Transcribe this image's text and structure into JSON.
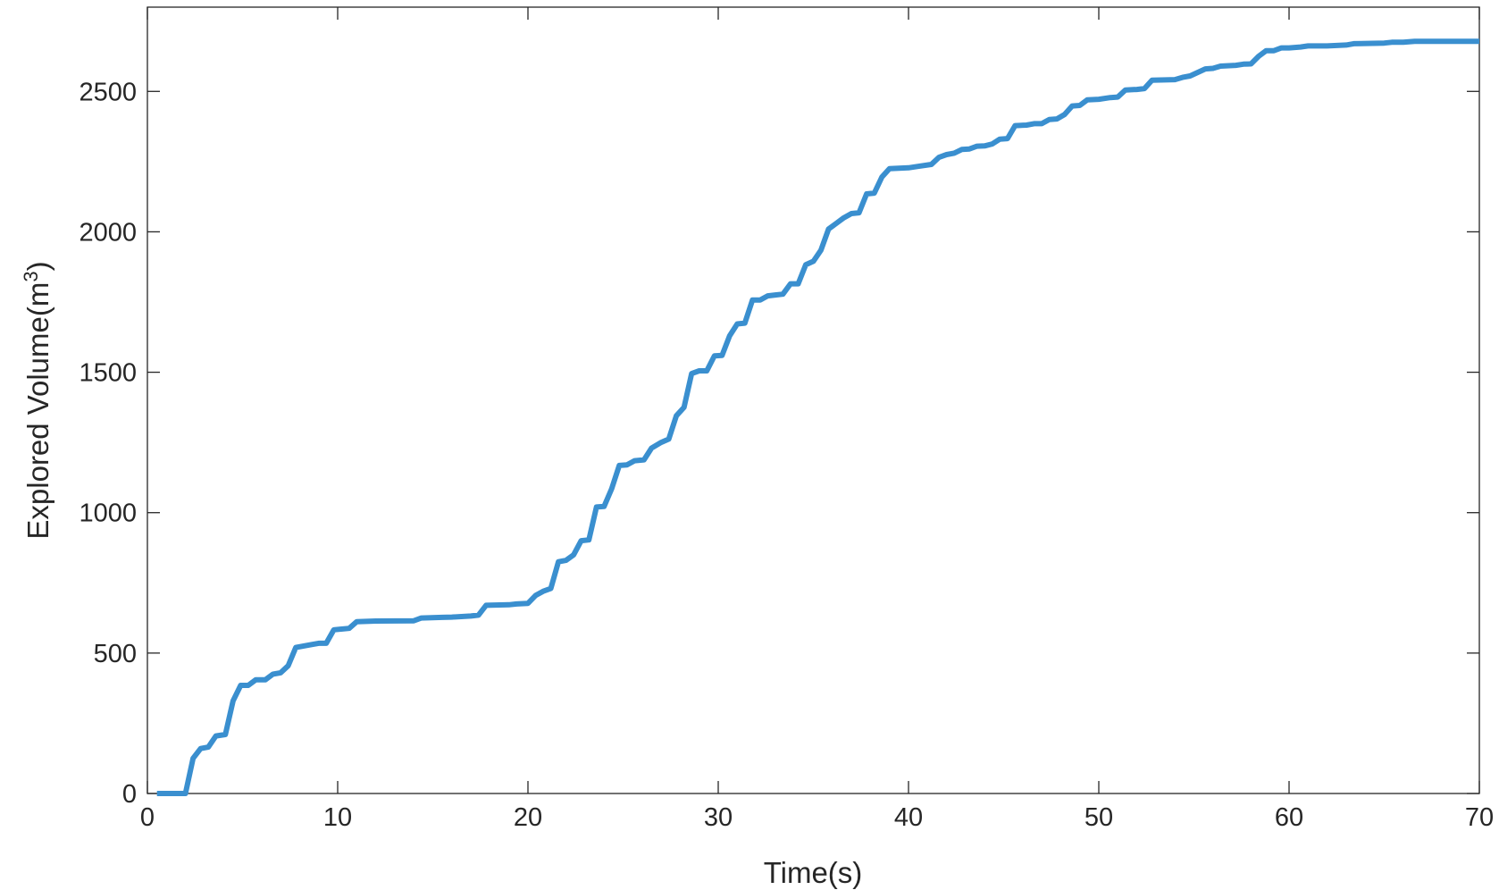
{
  "chart_data": {
    "type": "line",
    "xlabel": "Time(s)",
    "ylabel": "Explored Volume(m",
    "ylabel_sup": "3",
    "ylabel_end": ")",
    "xlim": [
      0,
      70
    ],
    "ylim": [
      0,
      2800
    ],
    "xticks": [
      0,
      10,
      20,
      30,
      40,
      50,
      60,
      70
    ],
    "yticks": [
      0,
      500,
      1000,
      1500,
      2000,
      2500
    ],
    "series": [
      {
        "name": "Explored Volume",
        "color": "#3a8fcf",
        "x": [
          0.5,
          2,
          2.4,
          2.8,
          3.2,
          3.6,
          4.1,
          4.5,
          4.9,
          5.3,
          5.7,
          6.2,
          6.6,
          7,
          7.4,
          7.8,
          8.6,
          9,
          9.4,
          9.8,
          10.6,
          11,
          12,
          14,
          14.4,
          15.5,
          16,
          17,
          17.4,
          17.8,
          19,
          19.4,
          20,
          20.4,
          20.8,
          21.2,
          21.6,
          22,
          22.4,
          22.8,
          23.2,
          23.6,
          24,
          24.4,
          24.8,
          25.2,
          25.6,
          26.1,
          26.5,
          27,
          27.4,
          27.8,
          28.2,
          28.6,
          29,
          29.4,
          29.8,
          30.2,
          30.6,
          31,
          31.4,
          31.8,
          32.2,
          32.6,
          33,
          33.4,
          33.8,
          34.2,
          34.6,
          35,
          35.4,
          35.8,
          36.2,
          36.6,
          37,
          37.4,
          37.8,
          38.2,
          38.6,
          39,
          40,
          40.5,
          41.2,
          41.6,
          42,
          42.4,
          42.8,
          43.2,
          43.6,
          44,
          44.4,
          44.8,
          45.2,
          45.6,
          46.2,
          46.6,
          47,
          47.4,
          47.8,
          48.2,
          48.6,
          49,
          49.4,
          50,
          50.6,
          51,
          51.4,
          52,
          52.4,
          52.8,
          54,
          54.4,
          54.8,
          55.6,
          56,
          56.4,
          57.2,
          57.6,
          58,
          58.4,
          58.8,
          59.2,
          59.6,
          60,
          60.6,
          61,
          62,
          63,
          63.4,
          65,
          65.4,
          66,
          66.6,
          70
        ],
        "values": [
          0,
          0,
          125,
          160,
          165,
          205,
          210,
          330,
          385,
          385,
          405,
          405,
          425,
          430,
          455,
          520,
          530,
          535,
          535,
          583,
          588,
          612,
          614,
          615,
          625,
          627,
          628,
          632,
          635,
          670,
          672,
          675,
          677,
          705,
          720,
          730,
          825,
          830,
          850,
          900,
          903,
          1020,
          1022,
          1085,
          1168,
          1170,
          1185,
          1188,
          1230,
          1250,
          1262,
          1345,
          1375,
          1495,
          1505,
          1505,
          1558,
          1560,
          1630,
          1672,
          1675,
          1757,
          1757,
          1772,
          1775,
          1778,
          1815,
          1815,
          1883,
          1895,
          1935,
          2010,
          2030,
          2050,
          2065,
          2068,
          2135,
          2138,
          2195,
          2225,
          2228,
          2233,
          2240,
          2265,
          2275,
          2280,
          2293,
          2295,
          2305,
          2306,
          2313,
          2330,
          2332,
          2378,
          2380,
          2385,
          2385,
          2400,
          2402,
          2418,
          2448,
          2450,
          2470,
          2472,
          2478,
          2480,
          2505,
          2507,
          2510,
          2540,
          2542,
          2550,
          2555,
          2580,
          2582,
          2590,
          2593,
          2597,
          2598,
          2625,
          2645,
          2645,
          2655,
          2655,
          2658,
          2662,
          2662,
          2665,
          2670,
          2672,
          2675,
          2675,
          2678,
          2678
        ]
      }
    ]
  }
}
